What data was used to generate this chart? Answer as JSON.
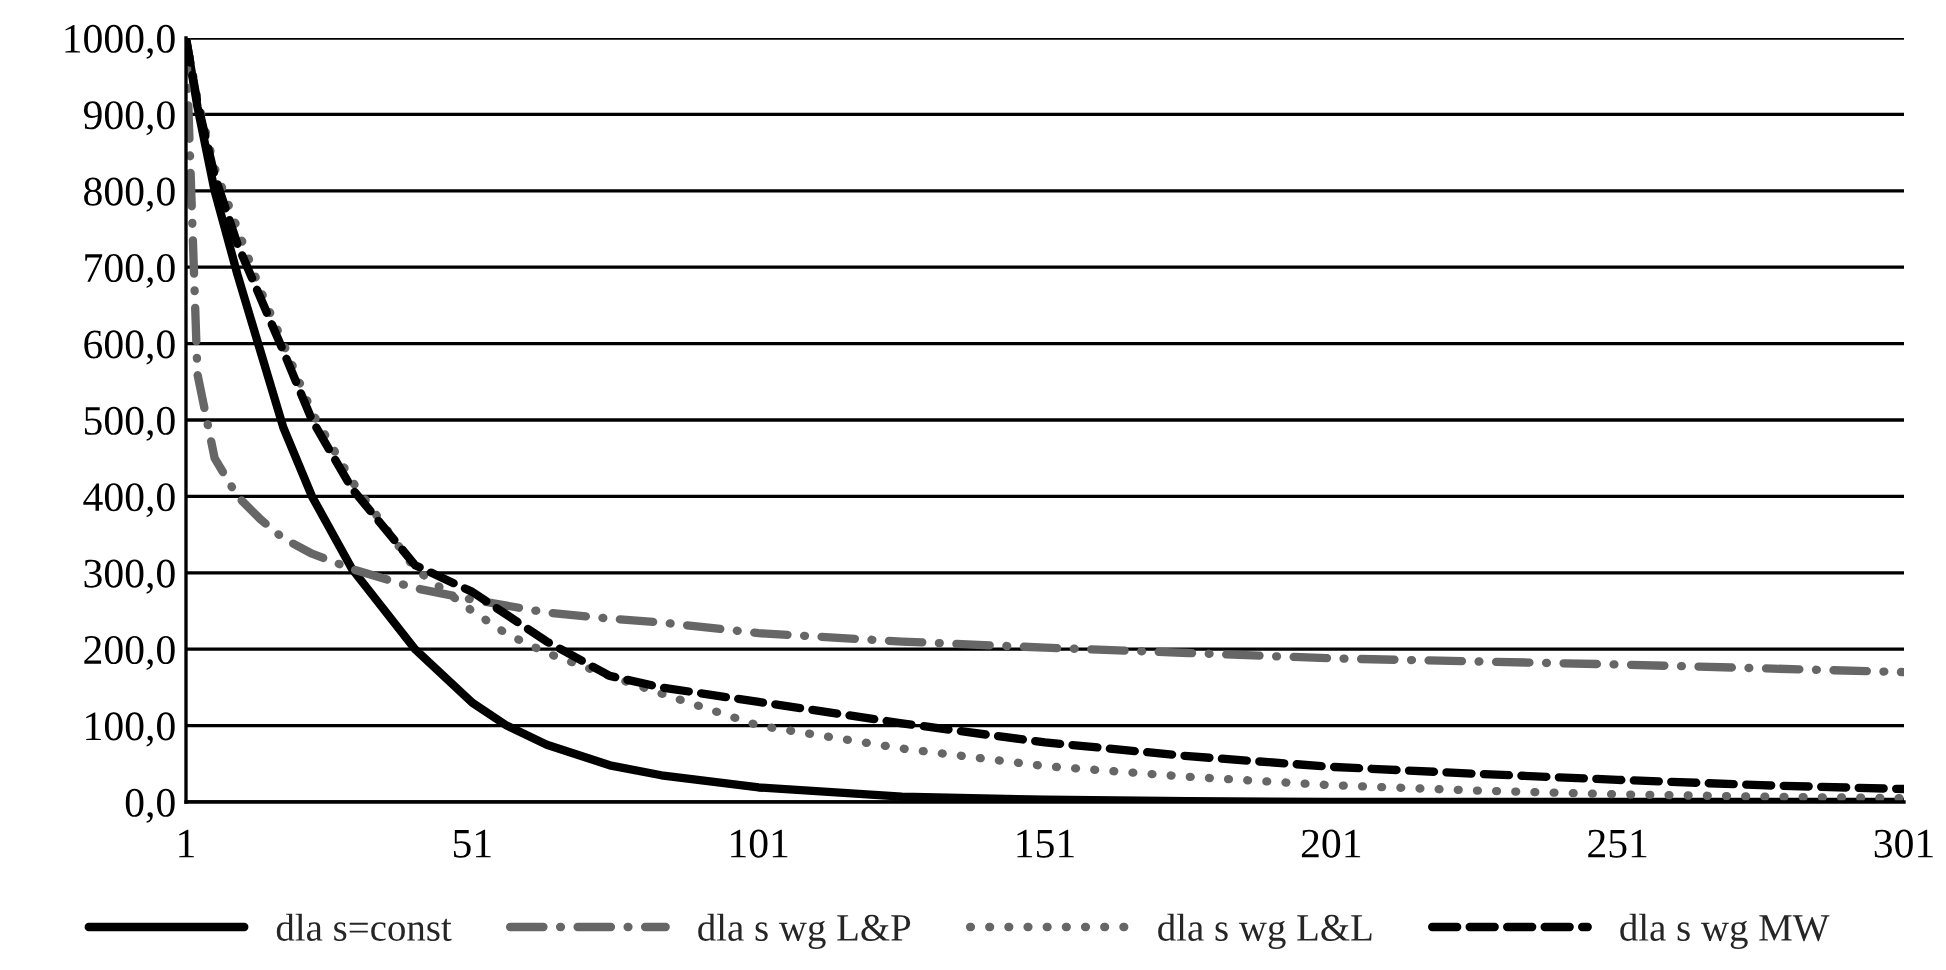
{
  "chart_data": {
    "type": "line",
    "x": [
      1,
      3,
      6,
      10,
      14,
      18,
      23,
      30,
      41,
      51,
      57,
      64,
      75,
      84,
      101,
      126,
      151,
      176,
      201,
      226,
      251,
      276,
      301
    ],
    "series": [
      {
        "name": "dla s=const",
        "color": "#000000",
        "line_style": "solid",
        "values": [
          1000,
          910,
          800,
          690,
          590,
          490,
          400,
          305,
          200,
          130,
          100,
          75,
          48,
          35,
          19,
          7,
          3,
          1,
          0,
          0,
          0,
          0,
          0
        ]
      },
      {
        "name": "dla s wg L&P",
        "color": "#666666",
        "line_style": "dash-dot",
        "values": [
          1000,
          560,
          450,
          400,
          370,
          345,
          325,
          305,
          280,
          265,
          257,
          248,
          240,
          235,
          221,
          210,
          202,
          195,
          188,
          184,
          180,
          175,
          170
        ]
      },
      {
        "name": "dla s wg L&L",
        "color": "#666666",
        "line_style": "dotted",
        "values": [
          1000,
          920,
          830,
          750,
          670,
          600,
          510,
          420,
          305,
          250,
          220,
          195,
          165,
          142,
          100,
          70,
          47,
          33,
          22,
          15,
          10,
          7,
          5
        ]
      },
      {
        "name": "dla s wg MW",
        "color": "#000000",
        "line_style": "dashed",
        "values": [
          1000,
          915,
          820,
          730,
          660,
          590,
          500,
          410,
          310,
          275,
          245,
          210,
          165,
          150,
          131,
          103,
          78,
          60,
          46,
          37,
          29,
          22,
          17
        ]
      }
    ],
    "xlim": [
      1,
      301
    ],
    "xticks": [
      1,
      51,
      101,
      151,
      201,
      251,
      301
    ],
    "ylim": [
      0,
      1000
    ],
    "yticks": [
      {
        "value": 0,
        "label": "0,0"
      },
      {
        "value": 100,
        "label": "100,0"
      },
      {
        "value": 200,
        "label": "200,0"
      },
      {
        "value": 300,
        "label": "300,0"
      },
      {
        "value": 400,
        "label": "400,0"
      },
      {
        "value": 500,
        "label": "500,0"
      },
      {
        "value": 600,
        "label": "600,0"
      },
      {
        "value": 700,
        "label": "700,0"
      },
      {
        "value": 800,
        "label": "800,0"
      },
      {
        "value": 900,
        "label": "900,0"
      },
      {
        "value": 1000,
        "label": "1000,0"
      }
    ],
    "grid": "y",
    "legend": "bottom",
    "marker": "none"
  }
}
